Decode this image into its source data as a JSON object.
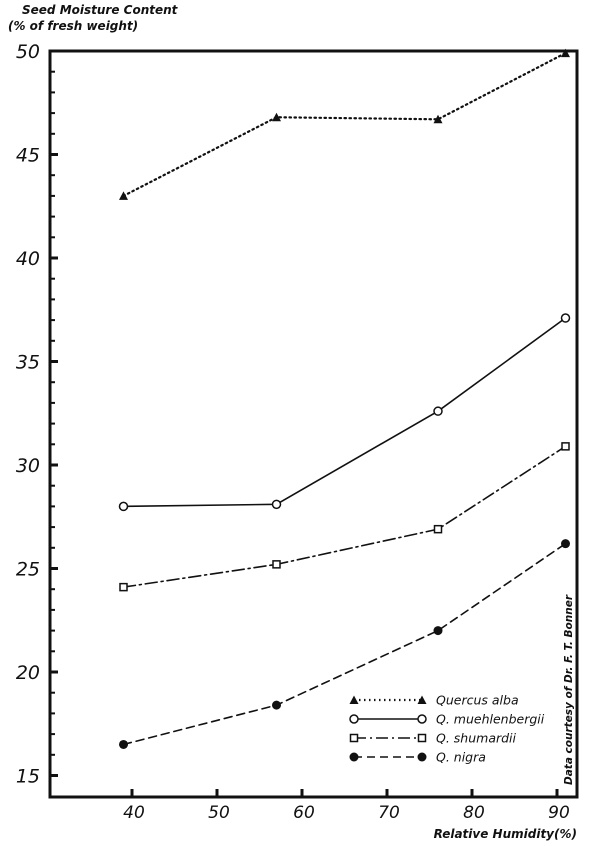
{
  "chart_data": {
    "type": "line",
    "ylabel_line1": "Seed Moisture Content",
    "ylabel_line2": "(% of fresh weight)",
    "xlabel": "Relative Humidity(%)",
    "annotation": "Data courtesy of Dr. F. T. Bonner",
    "xlim": [
      30.9,
      92.2
    ],
    "ylim": [
      13.9,
      50
    ],
    "xticks": [
      40,
      50,
      60,
      70,
      80,
      90
    ],
    "yticks": [
      15,
      20,
      25,
      30,
      35,
      40,
      45,
      50
    ],
    "grid": false,
    "legend_position": "bottom-right",
    "x": [
      39,
      57,
      76,
      91
    ],
    "series": [
      {
        "name": "Quercus alba",
        "style": "dotted",
        "marker": "filled-triangle",
        "values": [
          43.0,
          46.8,
          46.7,
          49.9
        ]
      },
      {
        "name": "Q. muehlenbergii",
        "style": "solid",
        "marker": "open-circle",
        "values": [
          28.0,
          28.1,
          32.6,
          37.1
        ]
      },
      {
        "name": "Q. shumardii",
        "style": "dash-dot",
        "marker": "open-square",
        "values": [
          24.1,
          25.2,
          26.9,
          30.9
        ]
      },
      {
        "name": "Q. nigra",
        "style": "dashed",
        "marker": "filled-circle",
        "values": [
          16.5,
          18.4,
          22.0,
          26.2
        ]
      }
    ]
  }
}
